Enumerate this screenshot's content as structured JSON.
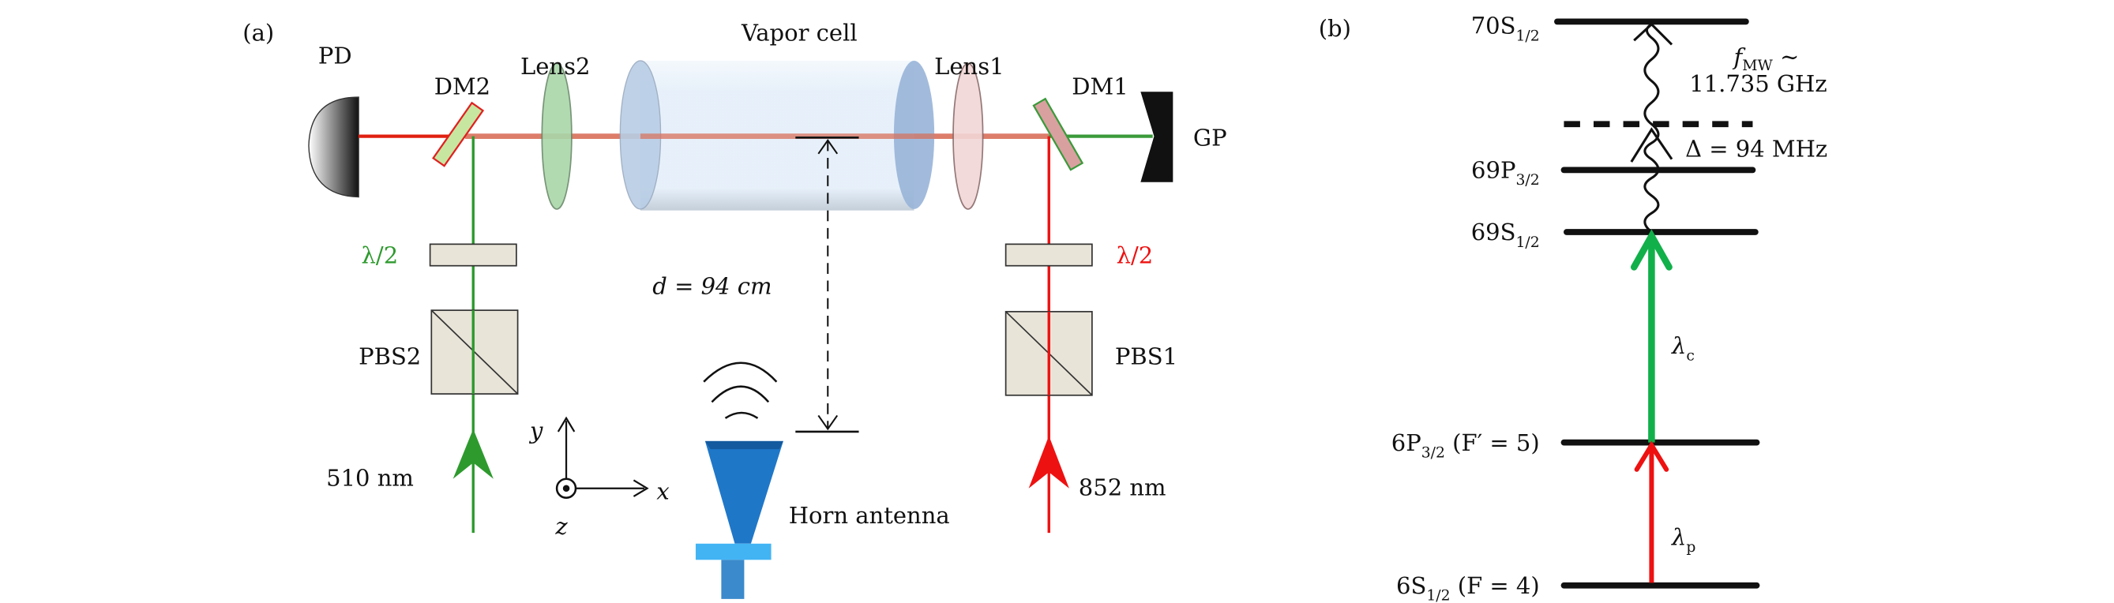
{
  "panel_a": {
    "tag": "(a)",
    "labels": {
      "pd": "PD",
      "dm2": "DM2",
      "lens2": "Lens2",
      "vapor_cell": "Vapor cell",
      "lens1": "Lens1",
      "dm1": "DM1",
      "gp": "GP",
      "half_wave_left": "λ/2",
      "half_wave_right": "λ/2",
      "pbs2": "PBS2",
      "pbs1": "PBS1",
      "distance": "d = 94 cm",
      "wavelength_left": "510 nm",
      "wavelength_right": "852 nm",
      "horn": "Horn antenna",
      "axis_x": "x",
      "axis_y": "y",
      "axis_z": "z"
    },
    "colors": {
      "coupling_beam": "#2e9a2e",
      "probe_beam": "#ee1111",
      "horn": "#1f77c8"
    }
  },
  "panel_b": {
    "tag": "(b)",
    "levels": {
      "l70s": {
        "main": "70S",
        "sub": "1/2",
        "extra": ""
      },
      "l69p": {
        "main": "69P",
        "sub": "3/2",
        "extra": ""
      },
      "l69s": {
        "main": "69S",
        "sub": "1/2",
        "extra": ""
      },
      "l6p": {
        "main": "6P",
        "sub": "3/2",
        "extra": " (F′ = 5)"
      },
      "l6s": {
        "main": "6S",
        "sub": "1/2",
        "extra": " (F = 4)"
      }
    },
    "mw_label": {
      "main": "f",
      "sub": "MW",
      "tail": " ∼"
    },
    "mw_freq": "11.735 GHz",
    "detuning": "Δ = 94 MHz",
    "coupling": {
      "main": "λ",
      "sub": "c"
    },
    "probe": {
      "main": "λ",
      "sub": "p"
    },
    "colors": {
      "coupling": "#11b04a",
      "probe": "#ee1111"
    }
  }
}
